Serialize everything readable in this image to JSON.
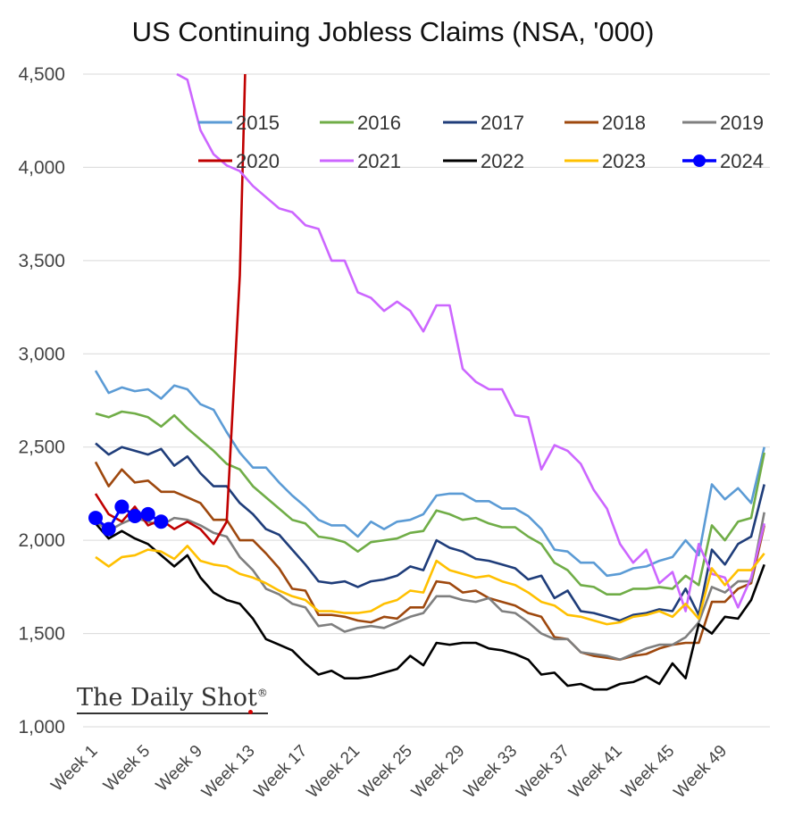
{
  "chart_data": {
    "type": "line",
    "title": "US Continuing Jobless Claims (NSA, '000)",
    "xlabel": "",
    "ylabel": "",
    "ylim": [
      1000,
      4500
    ],
    "yticks": [
      "1,000",
      "1,500",
      "2,000",
      "2,500",
      "3,000",
      "3,500",
      "4,000",
      "4,500"
    ],
    "ytick_values": [
      1000,
      1500,
      2000,
      2500,
      3000,
      3500,
      4000,
      4500
    ],
    "xticks": [
      "Week 1",
      "Week 5",
      "Week 9",
      "Week 13",
      "Week 17",
      "Week 21",
      "Week 25",
      "Week 29",
      "Week 33",
      "Week 37",
      "Week 41",
      "Week 45",
      "Week 49"
    ],
    "xtick_weeks": [
      1,
      5,
      9,
      13,
      17,
      21,
      25,
      29,
      33,
      37,
      41,
      45,
      49
    ],
    "grid": true,
    "legend_position": "top-right",
    "series": [
      {
        "name": "2015",
        "color": "#5b9bd5",
        "weeks": [
          1,
          2,
          3,
          4,
          5,
          6,
          7,
          8,
          9,
          10,
          11,
          12,
          13,
          14,
          15,
          16,
          17,
          18,
          19,
          20,
          21,
          22,
          23,
          24,
          25,
          26,
          27,
          28,
          29,
          30,
          31,
          32,
          33,
          34,
          35,
          36,
          37,
          38,
          39,
          40,
          41,
          42,
          43,
          44,
          45,
          46,
          47,
          48,
          49,
          50,
          51,
          52
        ],
        "values": [
          2910,
          2790,
          2820,
          2800,
          2810,
          2760,
          2830,
          2810,
          2730,
          2700,
          2580,
          2470,
          2390,
          2390,
          2310,
          2240,
          2180,
          2110,
          2080,
          2080,
          2020,
          2100,
          2060,
          2100,
          2110,
          2140,
          2240,
          2250,
          2250,
          2210,
          2210,
          2170,
          2170,
          2130,
          2060,
          1950,
          1940,
          1880,
          1880,
          1810,
          1820,
          1850,
          1860,
          1890,
          1910,
          2000,
          1920,
          2300,
          2220,
          2280,
          2200,
          2500
        ]
      },
      {
        "name": "2016",
        "color": "#70ad47",
        "weeks": [
          1,
          2,
          3,
          4,
          5,
          6,
          7,
          8,
          9,
          10,
          11,
          12,
          13,
          14,
          15,
          16,
          17,
          18,
          19,
          20,
          21,
          22,
          23,
          24,
          25,
          26,
          27,
          28,
          29,
          30,
          31,
          32,
          33,
          34,
          35,
          36,
          37,
          38,
          39,
          40,
          41,
          42,
          43,
          44,
          45,
          46,
          47,
          48,
          49,
          50,
          51,
          52
        ],
        "values": [
          2680,
          2660,
          2690,
          2680,
          2660,
          2610,
          2670,
          2600,
          2540,
          2480,
          2410,
          2380,
          2290,
          2230,
          2170,
          2110,
          2090,
          2020,
          2010,
          1990,
          1940,
          1990,
          2000,
          2010,
          2040,
          2050,
          2160,
          2140,
          2110,
          2120,
          2090,
          2070,
          2070,
          2020,
          1980,
          1880,
          1840,
          1760,
          1750,
          1710,
          1710,
          1740,
          1740,
          1750,
          1740,
          1810,
          1760,
          2080,
          2000,
          2100,
          2120,
          2470
        ]
      },
      {
        "name": "2017",
        "color": "#1f3d7a",
        "weeks": [
          1,
          2,
          3,
          4,
          5,
          6,
          7,
          8,
          9,
          10,
          11,
          12,
          13,
          14,
          15,
          16,
          17,
          18,
          19,
          20,
          21,
          22,
          23,
          24,
          25,
          26,
          27,
          28,
          29,
          30,
          31,
          32,
          33,
          34,
          35,
          36,
          37,
          38,
          39,
          40,
          41,
          42,
          43,
          44,
          45,
          46,
          47,
          48,
          49,
          50,
          51,
          52
        ],
        "values": [
          2520,
          2460,
          2500,
          2480,
          2460,
          2490,
          2400,
          2450,
          2360,
          2290,
          2290,
          2200,
          2140,
          2060,
          2030,
          1950,
          1870,
          1780,
          1770,
          1780,
          1750,
          1780,
          1790,
          1810,
          1860,
          1840,
          2000,
          1960,
          1940,
          1900,
          1890,
          1870,
          1850,
          1790,
          1810,
          1690,
          1730,
          1620,
          1610,
          1590,
          1570,
          1600,
          1610,
          1630,
          1620,
          1740,
          1600,
          1950,
          1870,
          1980,
          2020,
          2300
        ]
      },
      {
        "name": "2018",
        "color": "#9e480e",
        "weeks": [
          1,
          2,
          3,
          4,
          5,
          6,
          7,
          8,
          9,
          10,
          11,
          12,
          13,
          14,
          15,
          16,
          17,
          18,
          19,
          20,
          21,
          22,
          23,
          24,
          25,
          26,
          27,
          28,
          29,
          30,
          31,
          32,
          33,
          34,
          35,
          36,
          37,
          38,
          39,
          40,
          41,
          42,
          43,
          44,
          45,
          46,
          47,
          48,
          49,
          50,
          51,
          52
        ],
        "values": [
          2420,
          2290,
          2380,
          2310,
          2320,
          2260,
          2260,
          2230,
          2200,
          2110,
          2110,
          2000,
          2000,
          1930,
          1850,
          1740,
          1730,
          1600,
          1600,
          1590,
          1570,
          1560,
          1590,
          1580,
          1640,
          1640,
          1780,
          1770,
          1720,
          1730,
          1690,
          1670,
          1650,
          1610,
          1590,
          1480,
          1470,
          1400,
          1380,
          1370,
          1360,
          1380,
          1390,
          1420,
          1440,
          1450,
          1450,
          1670,
          1670,
          1740,
          1770,
          2080
        ]
      },
      {
        "name": "2019",
        "color": "#7f7f7f",
        "weeks": [
          1,
          2,
          3,
          4,
          5,
          6,
          7,
          8,
          9,
          10,
          11,
          12,
          13,
          14,
          15,
          16,
          17,
          18,
          19,
          20,
          21,
          22,
          23,
          24,
          25,
          26,
          27,
          28,
          29,
          30,
          31,
          32,
          33,
          34,
          35,
          36,
          37,
          38,
          39,
          40,
          41,
          42,
          43,
          44,
          45,
          46,
          47,
          48,
          49,
          50,
          51,
          52
        ],
        "values": [
          2100,
          2050,
          2090,
          2120,
          2100,
          2080,
          2120,
          2110,
          2080,
          2040,
          2020,
          1910,
          1840,
          1740,
          1710,
          1660,
          1640,
          1540,
          1550,
          1510,
          1530,
          1540,
          1530,
          1560,
          1590,
          1610,
          1700,
          1700,
          1680,
          1670,
          1690,
          1620,
          1610,
          1560,
          1500,
          1470,
          1470,
          1400,
          1390,
          1380,
          1360,
          1390,
          1420,
          1440,
          1440,
          1480,
          1560,
          1750,
          1720,
          1780,
          1780,
          2150
        ]
      },
      {
        "name": "2020",
        "color": "#c00000",
        "weeks": [
          1,
          2,
          3,
          4,
          5,
          6,
          7,
          8,
          9,
          10,
          11,
          12,
          12.4
        ],
        "values": [
          2250,
          2140,
          2100,
          2180,
          2080,
          2110,
          2060,
          2100,
          2060,
          1980,
          2100,
          3420,
          4500
        ]
      },
      {
        "name": "2021",
        "color": "#cc66ff",
        "weeks": [
          7.2,
          8,
          9,
          10,
          11,
          12,
          13,
          14,
          15,
          16,
          17,
          18,
          19,
          20,
          21,
          22,
          23,
          24,
          25,
          26,
          27,
          28,
          29,
          30,
          31,
          32,
          33,
          34,
          35,
          36,
          37,
          38,
          39,
          40,
          41,
          42,
          43,
          44,
          45,
          46,
          47,
          48,
          49,
          50,
          51,
          52
        ],
        "values": [
          4500,
          4470,
          4200,
          4070,
          4010,
          3980,
          3900,
          3840,
          3780,
          3760,
          3690,
          3670,
          3500,
          3500,
          3330,
          3300,
          3230,
          3280,
          3230,
          3120,
          3260,
          3260,
          2920,
          2850,
          2810,
          2810,
          2670,
          2660,
          2380,
          2510,
          2480,
          2410,
          2270,
          2170,
          1980,
          1880,
          1950,
          1770,
          1830,
          1620,
          1980,
          1820,
          1800,
          1640,
          1800,
          2090
        ]
      },
      {
        "name": "2022",
        "color": "#000000",
        "weeks": [
          1,
          2,
          3,
          4,
          5,
          6,
          7,
          8,
          9,
          10,
          11,
          12,
          13,
          14,
          15,
          16,
          17,
          18,
          19,
          20,
          21,
          22,
          23,
          24,
          25,
          26,
          27,
          28,
          29,
          30,
          31,
          32,
          33,
          34,
          35,
          36,
          37,
          38,
          39,
          40,
          41,
          42,
          43,
          44,
          45,
          46,
          47,
          48,
          49,
          50,
          51,
          52
        ],
        "values": [
          2090,
          2010,
          2050,
          2010,
          1980,
          1920,
          1860,
          1920,
          1800,
          1720,
          1680,
          1660,
          1580,
          1470,
          1440,
          1410,
          1340,
          1280,
          1300,
          1260,
          1260,
          1270,
          1290,
          1310,
          1380,
          1330,
          1450,
          1440,
          1450,
          1450,
          1420,
          1410,
          1390,
          1360,
          1280,
          1290,
          1220,
          1230,
          1200,
          1200,
          1230,
          1240,
          1270,
          1230,
          1340,
          1260,
          1550,
          1500,
          1590,
          1580,
          1680,
          1870
        ]
      },
      {
        "name": "2023",
        "color": "#ffc000",
        "weeks": [
          1,
          2,
          3,
          4,
          5,
          6,
          7,
          8,
          9,
          10,
          11,
          12,
          13,
          14,
          15,
          16,
          17,
          18,
          19,
          20,
          21,
          22,
          23,
          24,
          25,
          26,
          27,
          28,
          29,
          30,
          31,
          32,
          33,
          34,
          35,
          36,
          37,
          38,
          39,
          40,
          41,
          42,
          43,
          44,
          45,
          46,
          47,
          48,
          49,
          50,
          51,
          52
        ],
        "values": [
          1910,
          1860,
          1910,
          1920,
          1950,
          1940,
          1900,
          1970,
          1890,
          1870,
          1860,
          1820,
          1800,
          1770,
          1730,
          1700,
          1680,
          1620,
          1620,
          1610,
          1610,
          1620,
          1660,
          1680,
          1730,
          1720,
          1890,
          1840,
          1820,
          1800,
          1810,
          1780,
          1760,
          1720,
          1670,
          1650,
          1600,
          1590,
          1570,
          1550,
          1560,
          1590,
          1600,
          1620,
          1590,
          1660,
          1580,
          1850,
          1760,
          1840,
          1840,
          1930
        ]
      },
      {
        "name": "2024",
        "color": "#0000ff",
        "markers": true,
        "weeks": [
          1,
          2,
          3,
          4,
          5,
          6
        ],
        "values": [
          2120,
          2060,
          2180,
          2130,
          2140,
          2100
        ]
      }
    ]
  }
}
